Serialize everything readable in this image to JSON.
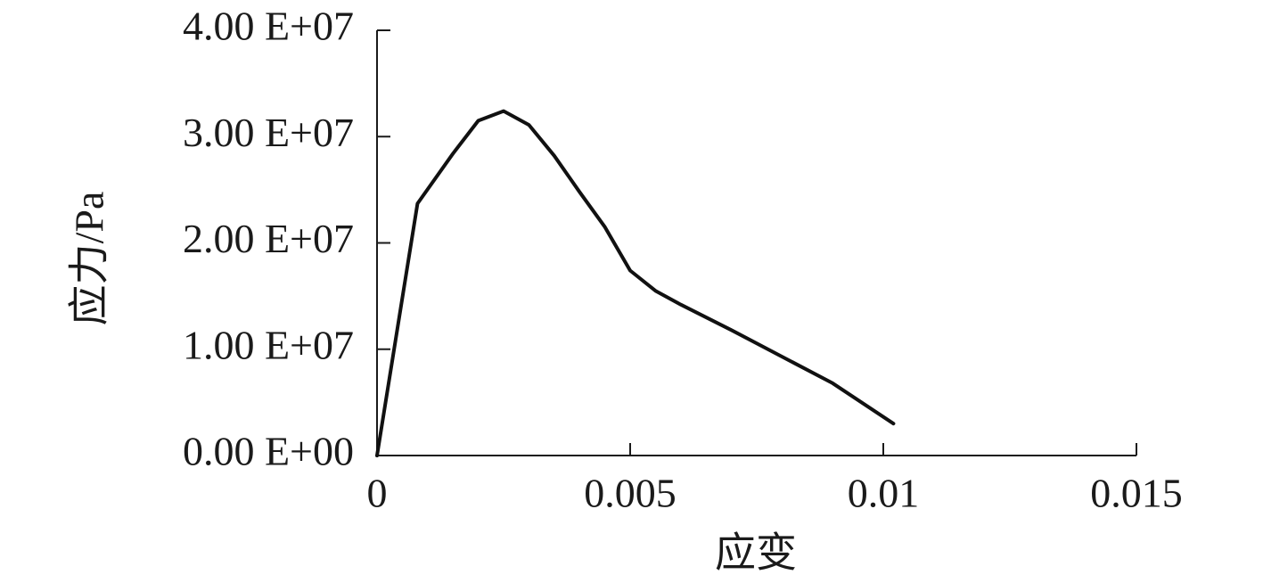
{
  "chart_data": {
    "type": "line",
    "x_label": "应变",
    "y_label": "应力/Pa",
    "color": "#111111",
    "x": [
      0,
      0.0008,
      0.0015,
      0.002,
      0.0025,
      0.003,
      0.0035,
      0.004,
      0.0045,
      0.005,
      0.0055,
      0.006,
      0.007,
      0.008,
      0.009,
      0.0102
    ],
    "values": [
      0,
      23700000,
      28400000,
      31500000,
      32400000,
      31100000,
      28200000,
      24800000,
      21500000,
      17400000,
      15500000,
      14200000,
      11800000,
      9300000,
      6800000,
      3000000
    ],
    "xlim": [
      0,
      0.015
    ],
    "xticks": [
      0,
      0.005,
      0.01,
      0.015
    ],
    "ylim": [
      0,
      40000000
    ],
    "yticks": [
      {
        "value": 0,
        "label": "0.00 E+00"
      },
      {
        "value": 10000000,
        "label": "1.00 E+07"
      },
      {
        "value": 20000000,
        "label": "2.00 E+07"
      },
      {
        "value": 30000000,
        "label": "3.00 E+07"
      },
      {
        "value": 40000000,
        "label": "4.00 E+07"
      }
    ],
    "grid": false
  }
}
